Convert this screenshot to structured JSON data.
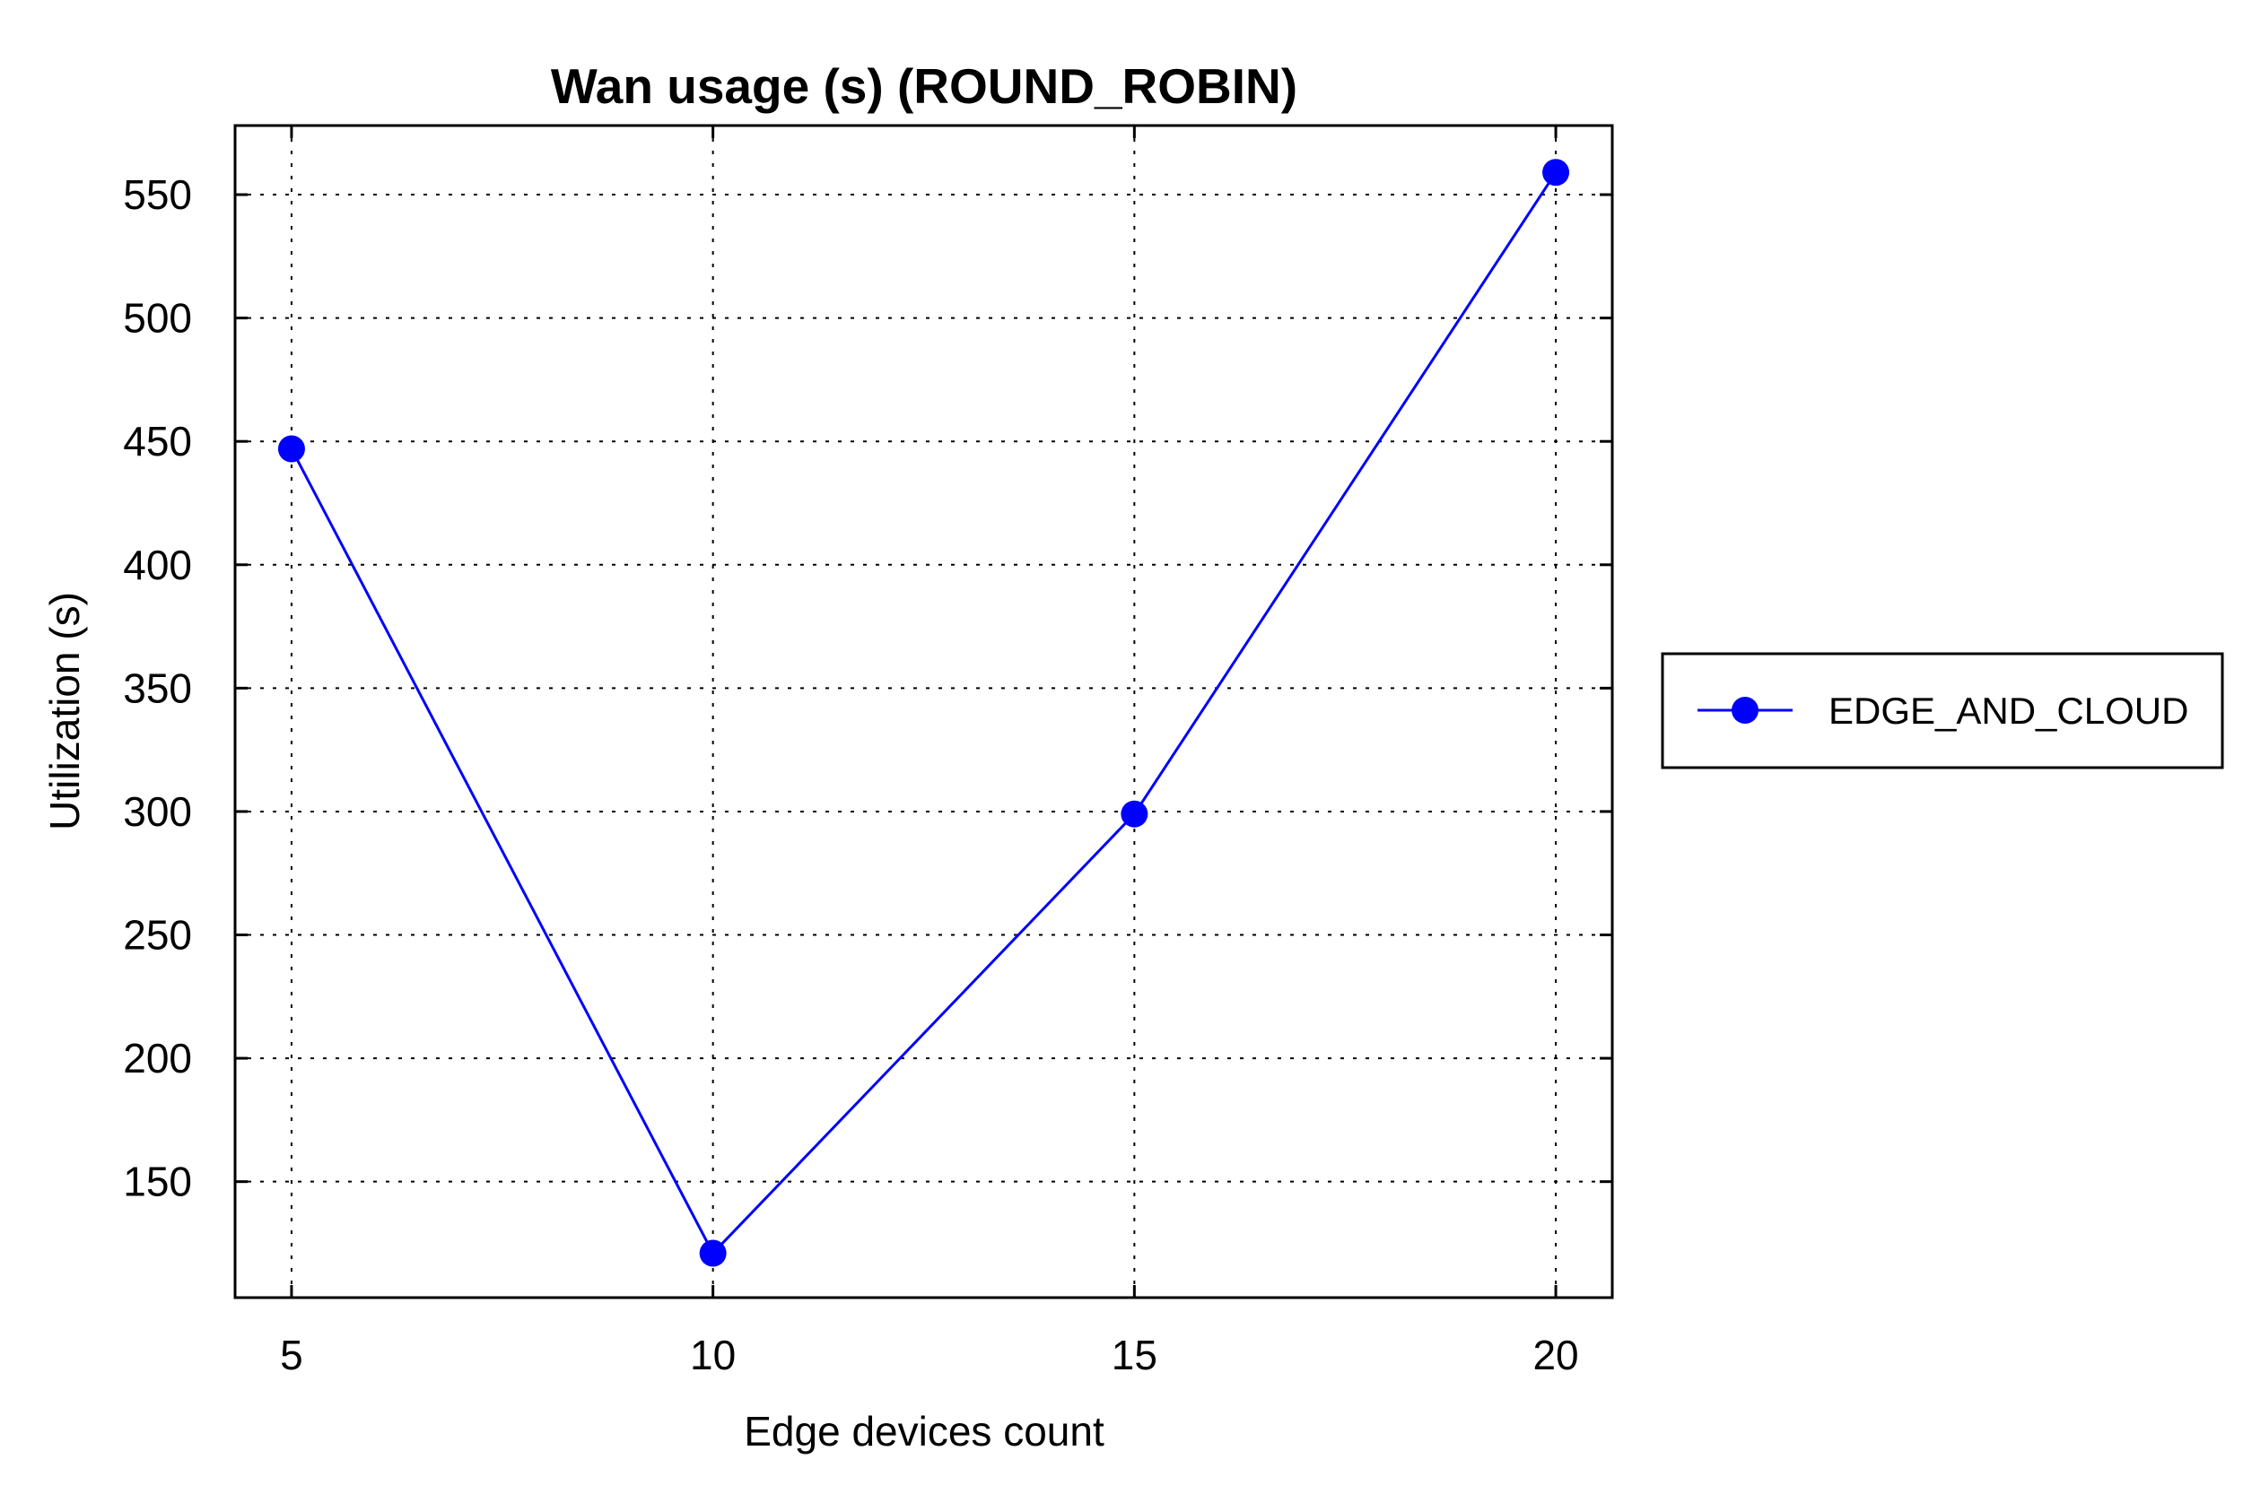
{
  "chart_data": {
    "type": "line",
    "title": "Wan usage (s) (ROUND_ROBIN)",
    "xlabel": "Edge devices count",
    "ylabel": "Utilization (s)",
    "x": [
      5,
      10,
      15,
      20
    ],
    "xticks": [
      "5",
      "10",
      "15",
      "20"
    ],
    "xlim": [
      4.33,
      20.67
    ],
    "ylim": [
      103,
      578
    ],
    "yticks": [
      "150",
      "200",
      "250",
      "300",
      "350",
      "400",
      "450",
      "500",
      "550"
    ],
    "grid": true,
    "legend_position": "outside-right",
    "series": [
      {
        "name": "EDGE_AND_CLOUD",
        "values": [
          447,
          121,
          299,
          559
        ],
        "color": "#0000ff",
        "marker": "circle"
      }
    ]
  }
}
